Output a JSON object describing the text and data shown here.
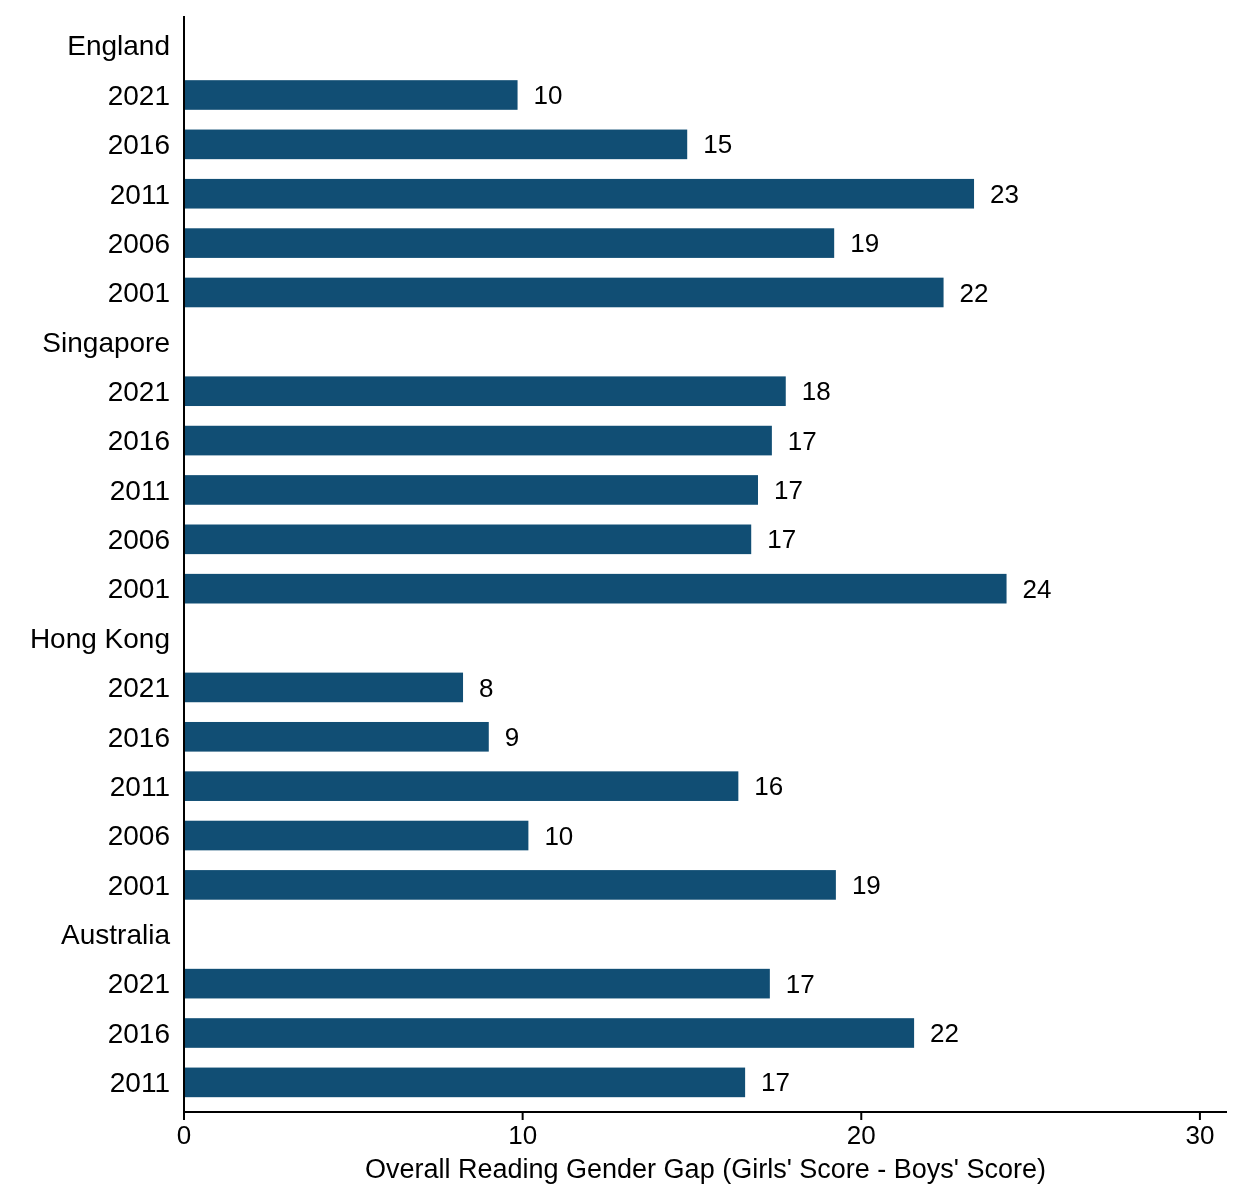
{
  "chart_data": {
    "type": "bar",
    "orientation": "horizontal",
    "xlabel": "Overall Reading Gender Gap (Girls' Score - Boys' Score)",
    "categories": [
      "England",
      "2021",
      "2016",
      "2011",
      "2006",
      "2001",
      "Singapore",
      "2021",
      "2016",
      "2011",
      "2006",
      "2001",
      "Hong Kong",
      "2021",
      "2016",
      "2011",
      "2006",
      "2001",
      "Australia",
      "2021",
      "2016",
      "2011"
    ],
    "values": [
      null,
      9.85,
      14.86,
      23.33,
      19.2,
      22.43,
      null,
      17.77,
      17.36,
      16.95,
      16.75,
      24.29,
      null,
      8.24,
      9.0,
      16.37,
      10.17,
      19.25,
      null,
      17.3,
      21.56,
      16.57
    ],
    "value_labels": [
      null,
      "10",
      "15",
      "23",
      "19",
      "22",
      null,
      "18",
      "17",
      "17",
      "17",
      "24",
      null,
      "8",
      "9",
      "16",
      "10",
      "19",
      null,
      "17",
      "22",
      "17"
    ],
    "color": "#114e74",
    "xlim": [
      0,
      30.8
    ],
    "xticks": [
      0,
      10,
      20,
      30
    ],
    "grid": false
  }
}
